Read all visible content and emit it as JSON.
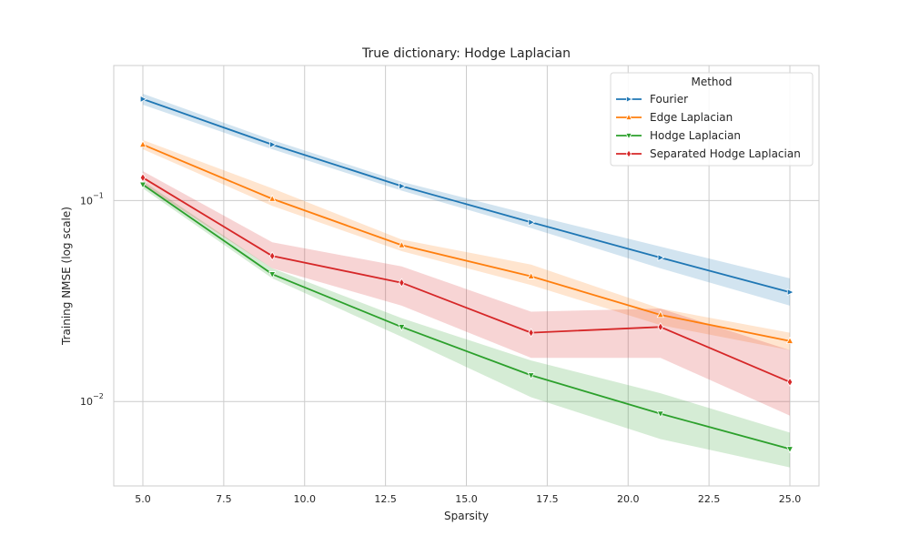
{
  "chart_data": {
    "type": "line",
    "title": "True dictionary: Hodge Laplacian",
    "xlabel": "Sparsity",
    "ylabel": "Training NMSE (log scale)",
    "yscale": "log",
    "xlim": [
      4.1,
      25.9
    ],
    "ylim": [
      0.0038,
      0.47
    ],
    "x": [
      5,
      9,
      13,
      17,
      21,
      25
    ],
    "x_ticks": [
      5.0,
      7.5,
      10.0,
      12.5,
      15.0,
      17.5,
      20.0,
      22.5,
      25.0
    ],
    "x_tick_labels": [
      "5.0",
      "7.5",
      "10.0",
      "12.5",
      "15.0",
      "17.5",
      "20.0",
      "22.5",
      "25.0"
    ],
    "y_ticks": [
      0.1,
      0.01
    ],
    "y_tick_labels": [
      {
        "base": "10",
        "exp": "−1"
      },
      {
        "base": "10",
        "exp": "−2"
      }
    ],
    "grid": true,
    "legend": {
      "title": "Method",
      "placement": "top-right"
    },
    "series": [
      {
        "name": "Fourier",
        "color": "#1f77b4",
        "marker": "triangle-right",
        "values": [
          0.32,
          0.19,
          0.118,
          0.078,
          0.052,
          0.035
        ],
        "lower": [
          0.3,
          0.18,
          0.112,
          0.073,
          0.046,
          0.03
        ],
        "upper": [
          0.34,
          0.2,
          0.124,
          0.085,
          0.059,
          0.041
        ]
      },
      {
        "name": "Edge Laplacian",
        "color": "#ff7f0e",
        "marker": "triangle-up",
        "values": [
          0.19,
          0.102,
          0.06,
          0.042,
          0.027,
          0.02
        ],
        "lower": [
          0.18,
          0.094,
          0.056,
          0.038,
          0.024,
          0.018
        ],
        "upper": [
          0.2,
          0.115,
          0.064,
          0.048,
          0.029,
          0.022
        ]
      },
      {
        "name": "Hodge Laplacian",
        "color": "#2ca02c",
        "marker": "triangle-down",
        "values": [
          0.12,
          0.043,
          0.0235,
          0.0135,
          0.0087,
          0.0058
        ],
        "lower": [
          0.115,
          0.041,
          0.021,
          0.0105,
          0.0065,
          0.0047
        ],
        "upper": [
          0.125,
          0.046,
          0.026,
          0.016,
          0.011,
          0.007
        ]
      },
      {
        "name": "Separated Hodge Laplacian",
        "color": "#d62728",
        "marker": "diamond",
        "values": [
          0.13,
          0.053,
          0.039,
          0.022,
          0.0235,
          0.0125
        ],
        "lower": [
          0.12,
          0.046,
          0.03,
          0.0165,
          0.0165,
          0.0085
        ],
        "upper": [
          0.14,
          0.062,
          0.047,
          0.028,
          0.029,
          0.018
        ]
      }
    ]
  }
}
